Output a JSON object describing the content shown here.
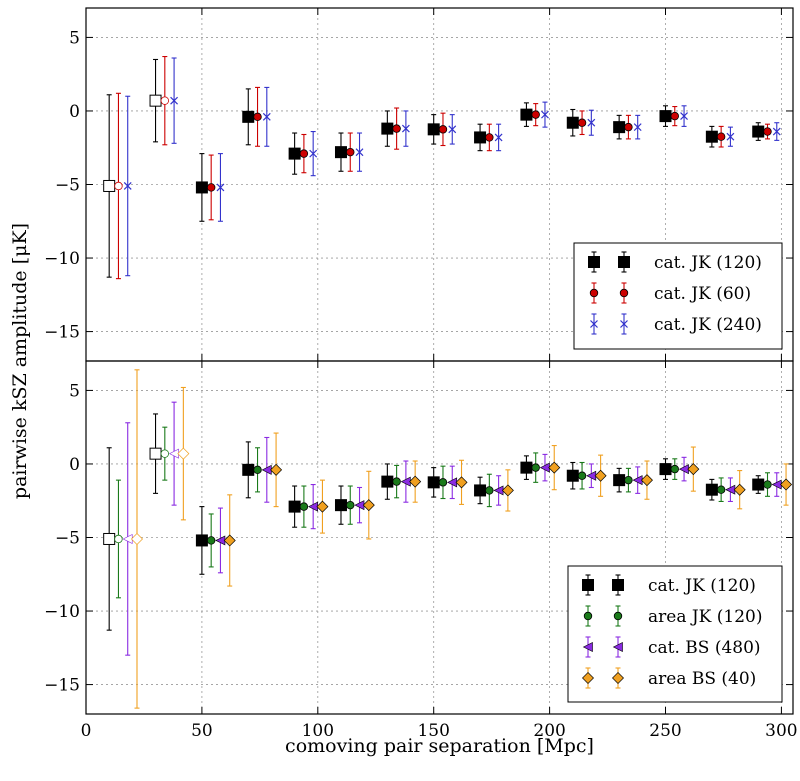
{
  "chart_data": [
    {
      "type": "scatter",
      "panel": "top",
      "xlabel": "comoving pair separation [Mpc]",
      "ylabel": "pairwise kSZ amplitude [μK]",
      "xlim": [
        0,
        305
      ],
      "ylim": [
        -17,
        7
      ],
      "xticks": [
        0,
        50,
        100,
        150,
        200,
        250,
        300
      ],
      "yticks": [
        5,
        0,
        -5,
        -10,
        -15
      ],
      "grid": true,
      "legend_position": "lower-right",
      "series": [
        {
          "name": "cat. JK (120)",
          "marker": "square",
          "color": "#000000",
          "x": [
            10,
            30,
            50,
            70,
            90,
            110,
            130,
            150,
            170,
            190,
            210,
            230,
            250,
            270,
            290
          ],
          "y": [
            -5.1,
            0.7,
            -5.2,
            -0.4,
            -2.9,
            -2.8,
            -1.2,
            -1.25,
            -1.8,
            -0.25,
            -0.8,
            -1.1,
            -0.35,
            -1.75,
            -1.4
          ],
          "err": [
            6.2,
            2.8,
            2.3,
            1.9,
            1.4,
            1.3,
            1.2,
            1.0,
            0.9,
            0.8,
            0.9,
            0.8,
            0.7,
            0.7,
            0.6
          ],
          "open_points": [
            0,
            1
          ]
        },
        {
          "name": "cat. JK (60)",
          "marker": "circle",
          "color": "#cc0000",
          "x": [
            14,
            34,
            54,
            74,
            94,
            114,
            134,
            154,
            174,
            194,
            214,
            234,
            254,
            274,
            294
          ],
          "y": [
            -5.1,
            0.7,
            -5.2,
            -0.4,
            -2.9,
            -2.8,
            -1.2,
            -1.25,
            -1.8,
            -0.25,
            -0.8,
            -1.1,
            -0.35,
            -1.75,
            -1.4
          ],
          "err": [
            6.3,
            3.0,
            2.2,
            2.0,
            1.3,
            1.3,
            1.4,
            1.1,
            0.9,
            0.75,
            0.8,
            0.8,
            0.65,
            0.7,
            0.5
          ],
          "open_points": [
            0,
            1
          ]
        },
        {
          "name": "cat. JK (240)",
          "marker": "x",
          "color": "#3333cc",
          "x": [
            18,
            38,
            58,
            78,
            98,
            118,
            138,
            158,
            178,
            198,
            218,
            238,
            258,
            278,
            298
          ],
          "y": [
            -5.1,
            0.7,
            -5.2,
            -0.4,
            -2.9,
            -2.8,
            -1.2,
            -1.25,
            -1.8,
            -0.25,
            -0.8,
            -1.1,
            -0.35,
            -1.75,
            -1.4
          ],
          "err": [
            6.1,
            2.9,
            2.3,
            2.0,
            1.5,
            1.3,
            1.2,
            1.0,
            0.9,
            0.85,
            0.85,
            0.8,
            0.7,
            0.65,
            0.6
          ],
          "open_points": [
            0,
            1
          ]
        }
      ]
    },
    {
      "type": "scatter",
      "panel": "bottom",
      "xlabel": "comoving pair separation [Mpc]",
      "ylabel": "pairwise kSZ amplitude [μK]",
      "xlim": [
        0,
        305
      ],
      "ylim": [
        -17,
        7
      ],
      "xticks": [
        0,
        50,
        100,
        150,
        200,
        250,
        300
      ],
      "yticks": [
        5,
        0,
        -5,
        -10,
        -15
      ],
      "grid": true,
      "legend_position": "lower-right",
      "series": [
        {
          "name": "cat. JK (120)",
          "marker": "square",
          "color": "#000000",
          "x": [
            10,
            30,
            50,
            70,
            90,
            110,
            130,
            150,
            170,
            190,
            210,
            230,
            250,
            270,
            290
          ],
          "y": [
            -5.1,
            0.7,
            -5.2,
            -0.4,
            -2.9,
            -2.8,
            -1.2,
            -1.25,
            -1.8,
            -0.25,
            -0.8,
            -1.1,
            -0.35,
            -1.75,
            -1.4
          ],
          "err": [
            6.2,
            2.7,
            2.3,
            1.9,
            1.4,
            1.3,
            1.2,
            1.0,
            0.9,
            0.8,
            0.9,
            0.8,
            0.7,
            0.7,
            0.6
          ],
          "open_points": [
            0,
            1
          ]
        },
        {
          "name": "area JK (120)",
          "marker": "circle",
          "color": "#1a7a1a",
          "x": [
            14,
            34,
            54,
            74,
            94,
            114,
            134,
            154,
            174,
            194,
            214,
            234,
            254,
            274,
            294
          ],
          "y": [
            -5.1,
            0.7,
            -5.2,
            -0.4,
            -2.9,
            -2.8,
            -1.2,
            -1.25,
            -1.8,
            -0.25,
            -0.8,
            -1.1,
            -0.35,
            -1.75,
            -1.4
          ],
          "err": [
            4.0,
            1.8,
            1.8,
            1.5,
            1.4,
            1.3,
            1.1,
            1.1,
            1.1,
            1.0,
            0.9,
            0.8,
            0.7,
            0.8,
            0.8
          ],
          "open_points": [
            0,
            1
          ]
        },
        {
          "name": "cat. BS (480)",
          "marker": "triangle-left",
          "color": "#8a2be2",
          "x": [
            18,
            38,
            58,
            78,
            98,
            118,
            138,
            158,
            178,
            198,
            218,
            238,
            258,
            278,
            298
          ],
          "y": [
            -5.1,
            0.7,
            -5.2,
            -0.4,
            -2.9,
            -2.8,
            -1.2,
            -1.25,
            -1.8,
            -0.25,
            -0.8,
            -1.1,
            -0.35,
            -1.75,
            -1.4
          ],
          "err": [
            7.9,
            3.5,
            2.2,
            2.2,
            1.5,
            1.2,
            1.4,
            1.1,
            1.0,
            0.9,
            0.8,
            0.9,
            0.8,
            0.8,
            0.8
          ],
          "open_points": [
            0,
            1
          ]
        },
        {
          "name": "area BS (40)",
          "marker": "diamond",
          "color": "#f0a020",
          "x": [
            22,
            42,
            62,
            82,
            102,
            122,
            142,
            162,
            182,
            202,
            222,
            242,
            262,
            282,
            302
          ],
          "y": [
            -5.1,
            0.7,
            -5.2,
            -0.4,
            -2.9,
            -2.8,
            -1.2,
            -1.25,
            -1.8,
            -0.25,
            -0.8,
            -1.1,
            -0.35,
            -1.75,
            -1.4
          ],
          "err": [
            11.5,
            4.5,
            3.1,
            2.5,
            1.8,
            2.3,
            1.4,
            1.5,
            1.4,
            1.5,
            1.4,
            1.3,
            1.5,
            1.3,
            1.4
          ],
          "open_points": [
            0,
            1
          ]
        }
      ]
    }
  ]
}
